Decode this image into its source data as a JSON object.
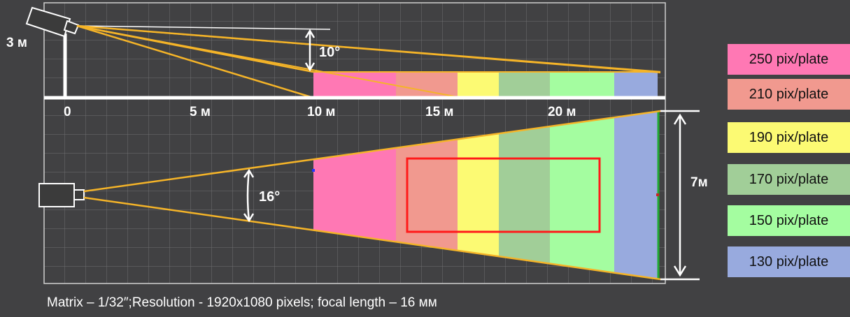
{
  "side_view": {
    "height_label": "3 м",
    "tilt_angle_label": "10°",
    "axis_labels": [
      "0",
      "5 м",
      "10 м",
      "15 м",
      "20 м"
    ]
  },
  "top_view": {
    "fov_angle_label": "16°",
    "width_label": "7м"
  },
  "legend": [
    {
      "label": "250 pix/plate",
      "color": "#ff78b4"
    },
    {
      "label": "210 pix/plate",
      "color": "#f1998f"
    },
    {
      "label": "190 pix/plate",
      "color": "#fcfa73"
    },
    {
      "label": "170 pix/plate",
      "color": "#a1ce98"
    },
    {
      "label": "150 pix/plate",
      "color": "#a4fda0"
    },
    {
      "label": "130 pix/plate",
      "color": "#98aade"
    }
  ],
  "caption": "Matrix – 1/32″;Resolution - 1920x1080 pixels; focal length – 16 мм"
}
